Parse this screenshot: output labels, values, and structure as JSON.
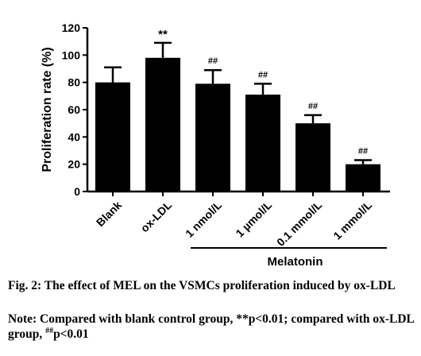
{
  "chart_data": {
    "type": "bar",
    "categories": [
      "Blank",
      "ox-LDL",
      "1 nmol/L",
      "1 µmol/L",
      "0.1 mmol/L",
      "1 mmol/L"
    ],
    "values": [
      80,
      98,
      79,
      71,
      50,
      20
    ],
    "errors": [
      11,
      11,
      10,
      8,
      6,
      3
    ],
    "significance": [
      "",
      "**",
      "##",
      "##",
      "##",
      "##"
    ],
    "title": "",
    "xlabel": "",
    "ylabel": "Proliferation rate (%)",
    "ylim": [
      0,
      120
    ],
    "yticks": [
      0,
      20,
      40,
      60,
      80,
      100,
      120
    ],
    "group_label": "Melatonin",
    "group_categories": [
      "1 nmol/L",
      "1 µmol/L",
      "0.1 mmol/L",
      "1 mmol/L"
    ],
    "bar_color": "#000000",
    "grid": false,
    "legend": "none"
  },
  "caption": {
    "figure": "Fig. 2: The effect of MEL on the VSMCs proliferation induced by ox-LDL",
    "note_prefix": "Note: Compared with blank control group, **p<0.01; compared with ox-LDL group, ",
    "note_sup": "##",
    "note_suffix": "p<0.01"
  }
}
